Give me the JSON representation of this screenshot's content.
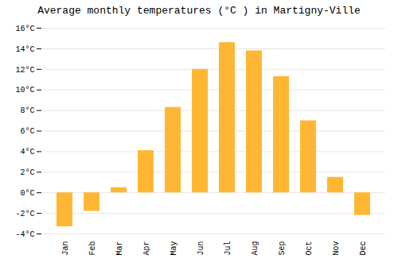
{
  "chart_data": {
    "type": "bar",
    "title": "Average monthly temperatures (°C ) in Martigny-Ville",
    "categories": [
      "Jan",
      "Feb",
      "Mar",
      "Apr",
      "May",
      "Jun",
      "Jul",
      "Aug",
      "Sep",
      "Oct",
      "Nov",
      "Dec"
    ],
    "values": [
      -3.3,
      -1.8,
      0.5,
      4.1,
      8.3,
      12.0,
      14.6,
      13.8,
      11.3,
      7.0,
      1.5,
      -2.2
    ],
    "color": "#FFB733",
    "ylim": [
      -4,
      16
    ],
    "yticks": [
      {
        "value": -4,
        "label": "-4°C"
      },
      {
        "value": -2,
        "label": "-2°C"
      },
      {
        "value": 0,
        "label": "0°C"
      },
      {
        "value": 2,
        "label": "2°C"
      },
      {
        "value": 4,
        "label": "4°C"
      },
      {
        "value": 6,
        "label": "6°C"
      },
      {
        "value": 8,
        "label": "8°C"
      },
      {
        "value": 10,
        "label": "10°C"
      },
      {
        "value": 12,
        "label": "12°C"
      },
      {
        "value": 14,
        "label": "14°C"
      },
      {
        "value": 16,
        "label": "16°C"
      }
    ],
    "grid": true
  }
}
